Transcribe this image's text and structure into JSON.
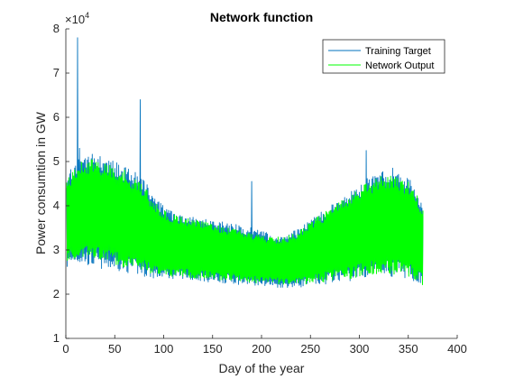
{
  "chart_data": {
    "type": "line",
    "title": "Network function",
    "xlabel": "Day of the year",
    "ylabel": "Power consumtion in GW",
    "y_exponent_label": "×10",
    "y_exponent_power": "4",
    "xlim": [
      0,
      400
    ],
    "ylim": [
      10000,
      80000
    ],
    "x_ticks": [
      "0",
      "50",
      "100",
      "150",
      "200",
      "250",
      "300",
      "350",
      "400"
    ],
    "y_ticks": [
      "1",
      "2",
      "3",
      "4",
      "5",
      "6",
      "7",
      "8"
    ],
    "grid": false,
    "legend_position": "top-right",
    "series": [
      {
        "name": "Training Target",
        "color": "#0072BD",
        "envelope": {
          "x": [
            1,
            10,
            20,
            30,
            40,
            50,
            60,
            70,
            80,
            90,
            100,
            110,
            120,
            130,
            140,
            150,
            160,
            170,
            180,
            190,
            200,
            210,
            220,
            230,
            240,
            250,
            260,
            270,
            280,
            290,
            300,
            310,
            320,
            330,
            340,
            350,
            360,
            365
          ],
          "high": [
            47000,
            50000,
            52000,
            51500,
            51000,
            50000,
            49000,
            48000,
            46000,
            42000,
            40000,
            38500,
            38000,
            37500,
            37000,
            37000,
            36500,
            36000,
            35500,
            35000,
            34500,
            33500,
            33000,
            34000,
            35000,
            37000,
            38500,
            40000,
            41500,
            43000,
            45000,
            46500,
            47500,
            48000,
            47500,
            46500,
            43000,
            40000
          ],
          "low": [
            25500,
            27000,
            26500,
            26000,
            25500,
            25500,
            25000,
            24500,
            24000,
            23500,
            23500,
            23500,
            23500,
            23000,
            23000,
            22500,
            22500,
            22500,
            22000,
            22000,
            22000,
            21500,
            21500,
            21500,
            21500,
            22000,
            22000,
            22500,
            23000,
            23000,
            23500,
            23500,
            24000,
            24000,
            24000,
            23500,
            22500,
            21500
          ]
        },
        "spikes": [
          {
            "x": 12,
            "y": 78000
          },
          {
            "x": 14,
            "y": 53000
          },
          {
            "x": 76,
            "y": 64000
          },
          {
            "x": 190,
            "y": 45500
          },
          {
            "x": 307,
            "y": 52500
          },
          {
            "x": 334,
            "y": 48500
          }
        ]
      },
      {
        "name": "Network Output",
        "color": "#00FF00",
        "envelope": {
          "x": [
            1,
            10,
            20,
            30,
            40,
            50,
            60,
            70,
            80,
            90,
            100,
            110,
            120,
            130,
            140,
            150,
            160,
            170,
            180,
            190,
            200,
            210,
            220,
            230,
            240,
            250,
            260,
            270,
            280,
            290,
            300,
            310,
            320,
            330,
            340,
            350,
            360,
            365
          ],
          "high": [
            46000,
            49000,
            50500,
            50500,
            50000,
            49000,
            48000,
            46500,
            44500,
            41000,
            39000,
            38000,
            37500,
            37000,
            36500,
            36000,
            35500,
            35000,
            34500,
            34000,
            33500,
            33000,
            33000,
            33500,
            34500,
            36500,
            38000,
            39500,
            41000,
            42500,
            44000,
            45500,
            46500,
            47000,
            46500,
            45500,
            42000,
            39500
          ],
          "low": [
            27000,
            28000,
            28000,
            27500,
            27000,
            26500,
            26000,
            25500,
            25000,
            24500,
            24000,
            24000,
            24000,
            23500,
            23500,
            23500,
            23000,
            23000,
            23000,
            22500,
            22500,
            22500,
            22000,
            22000,
            22000,
            22500,
            22500,
            23000,
            23500,
            23500,
            24000,
            24500,
            24500,
            24500,
            24500,
            24000,
            23000,
            22000
          ]
        },
        "spikes": []
      }
    ]
  }
}
